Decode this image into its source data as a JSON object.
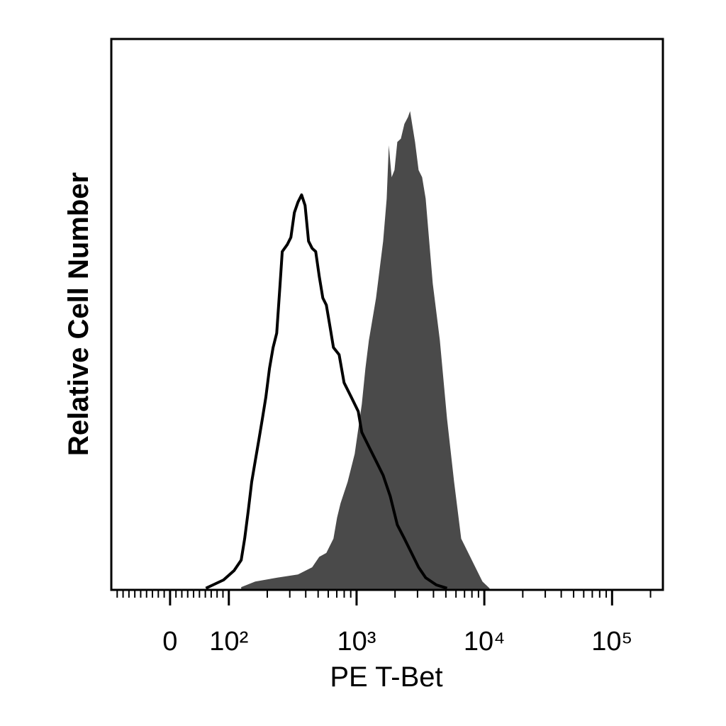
{
  "chart_data": {
    "type": "histogram-overlay",
    "x_label": "PE T-Bet",
    "y_label": "Relative Cell Number",
    "x_scale": "biexponential",
    "xlim": [
      -100,
      250000
    ],
    "ylim": [
      0,
      100
    ],
    "xticks": [
      0,
      {
        "value": 100,
        "label": "10²"
      },
      {
        "value": 1000,
        "label": "10³"
      },
      {
        "value": 10000,
        "label": "10⁴"
      },
      {
        "value": 100000,
        "label": "10⁵"
      }
    ],
    "xminorticks": [
      -90,
      -80,
      -70,
      -60,
      -50,
      -40,
      -30,
      -20,
      -10,
      10,
      20,
      30,
      40,
      50,
      60,
      70,
      80,
      90,
      200,
      300,
      400,
      500,
      600,
      700,
      800,
      900,
      2000,
      3000,
      4000,
      5000,
      6000,
      7000,
      8000,
      9000,
      20000,
      30000,
      40000,
      50000,
      60000,
      70000,
      80000,
      90000,
      200000
    ],
    "series": [
      {
        "color": "#4a4a4a",
        "fill": true,
        "x": [
          125,
          161,
          237,
          348,
          449,
          510,
          580,
          659,
          703,
          749,
          851,
          967,
          1099,
          1172,
          1249,
          1420,
          1614,
          1720,
          1787,
          1881,
          1980,
          2084,
          2222,
          2368,
          2524,
          2622,
          2761,
          2870,
          3059,
          3261,
          3476,
          3705,
          3949,
          4488,
          5102,
          5798,
          6590,
          7490,
          8511,
          9674,
          10990
        ],
        "values": [
          0.5,
          1.5,
          2.2,
          2.8,
          4.1,
          6.0,
          6.7,
          9.3,
          13.1,
          15.7,
          19.6,
          24.7,
          33.7,
          40.2,
          45.3,
          53.0,
          63.3,
          71.0,
          80.7,
          74.9,
          76.2,
          81.3,
          81.9,
          84.6,
          85.8,
          86.9,
          83.7,
          81.3,
          76.2,
          74.9,
          71.0,
          63.3,
          55.6,
          45.3,
          31.1,
          19.6,
          9.3,
          6.7,
          4.1,
          1.5,
          0.3
        ]
      },
      {
        "color": "#000000",
        "fill": false,
        "x": [
          61,
          73,
          91,
          110,
          125,
          133,
          142,
          151,
          161,
          172,
          183,
          195,
          208,
          222,
          237,
          252,
          262,
          287,
          306,
          326,
          348,
          371,
          395,
          421,
          449,
          479,
          510,
          544,
          580,
          618,
          659,
          730,
          798,
          908,
          1031,
          1099,
          1249,
          1420,
          1614,
          1834,
          2084,
          2368,
          2692,
          3059,
          3476,
          4211,
          5102
        ],
        "values": [
          0.3,
          0.9,
          1.8,
          3.5,
          5.4,
          9.3,
          14.4,
          19.6,
          23.4,
          27.3,
          31.1,
          35.0,
          40.2,
          44.0,
          46.6,
          55.6,
          61.4,
          62.7,
          64.0,
          68.5,
          70.4,
          71.7,
          69.8,
          63.3,
          62.0,
          61.4,
          56.9,
          53.0,
          51.7,
          47.9,
          44.0,
          42.7,
          37.6,
          35.0,
          32.4,
          28.6,
          26.0,
          23.4,
          20.8,
          17.0,
          11.8,
          9.3,
          6.7,
          4.1,
          2.2,
          0.9,
          0.3
        ]
      }
    ]
  }
}
